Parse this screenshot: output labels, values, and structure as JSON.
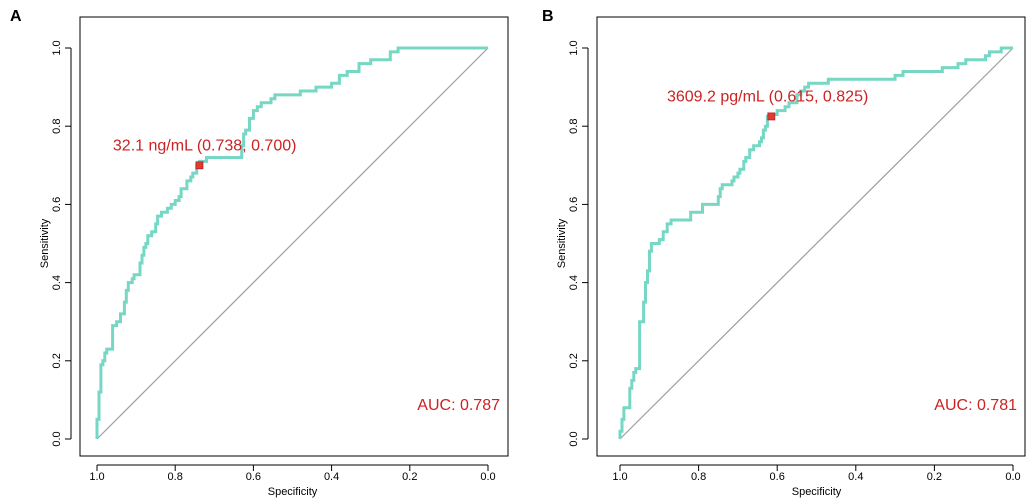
{
  "chart_data": [
    {
      "type": "line",
      "panel_label": "A",
      "xlabel": "Specificity",
      "ylabel": "Sensitivity",
      "xlim": [
        1.0,
        0.0
      ],
      "ylim": [
        0.0,
        1.0
      ],
      "xticks": [
        1.0,
        0.8,
        0.6,
        0.4,
        0.2,
        0.0
      ],
      "xtick_labels": [
        "1.0",
        "0.8",
        "0.6",
        "0.4",
        "0.2",
        "0.0"
      ],
      "yticks": [
        0.0,
        0.2,
        0.4,
        0.6,
        0.8,
        1.0
      ],
      "ytick_labels": [
        "0.0",
        "0.2",
        "0.4",
        "0.6",
        "0.8",
        "1.0"
      ],
      "series": [
        {
          "name": "ROC",
          "color": "#76D7C4",
          "points": [
            [
              1.0,
              0.0
            ],
            [
              1.0,
              0.03
            ],
            [
              0.995,
              0.05
            ],
            [
              0.995,
              0.1
            ],
            [
              0.99,
              0.12
            ],
            [
              0.99,
              0.17
            ],
            [
              0.985,
              0.19
            ],
            [
              0.98,
              0.2
            ],
            [
              0.975,
              0.22
            ],
            [
              0.96,
              0.23
            ],
            [
              0.96,
              0.28
            ],
            [
              0.95,
              0.29
            ],
            [
              0.94,
              0.3
            ],
            [
              0.93,
              0.32
            ],
            [
              0.925,
              0.35
            ],
            [
              0.92,
              0.38
            ],
            [
              0.91,
              0.4
            ],
            [
              0.905,
              0.41
            ],
            [
              0.89,
              0.42
            ],
            [
              0.885,
              0.45
            ],
            [
              0.88,
              0.47
            ],
            [
              0.875,
              0.49
            ],
            [
              0.87,
              0.5
            ],
            [
              0.86,
              0.52
            ],
            [
              0.85,
              0.53
            ],
            [
              0.845,
              0.55
            ],
            [
              0.835,
              0.57
            ],
            [
              0.82,
              0.58
            ],
            [
              0.81,
              0.59
            ],
            [
              0.8,
              0.6
            ],
            [
              0.79,
              0.61
            ],
            [
              0.785,
              0.62
            ],
            [
              0.77,
              0.64
            ],
            [
              0.76,
              0.66
            ],
            [
              0.755,
              0.67
            ],
            [
              0.745,
              0.68
            ],
            [
              0.738,
              0.7
            ],
            [
              0.72,
              0.71
            ],
            [
              0.7,
              0.72
            ],
            [
              0.63,
              0.72
            ],
            [
              0.625,
              0.75
            ],
            [
              0.62,
              0.78
            ],
            [
              0.61,
              0.79
            ],
            [
              0.6,
              0.82
            ],
            [
              0.59,
              0.84
            ],
            [
              0.58,
              0.85
            ],
            [
              0.555,
              0.86
            ],
            [
              0.545,
              0.87
            ],
            [
              0.52,
              0.88
            ],
            [
              0.48,
              0.88
            ],
            [
              0.47,
              0.89
            ],
            [
              0.44,
              0.89
            ],
            [
              0.4,
              0.9
            ],
            [
              0.38,
              0.91
            ],
            [
              0.36,
              0.93
            ],
            [
              0.35,
              0.94
            ],
            [
              0.33,
              0.94
            ],
            [
              0.3,
              0.96
            ],
            [
              0.25,
              0.97
            ],
            [
              0.23,
              0.99
            ],
            [
              0.22,
              1.0
            ],
            [
              0.0,
              1.0
            ]
          ]
        }
      ],
      "cutoff": {
        "x": 0.738,
        "y": 0.7,
        "label": "32.1 ng/mL (0.738, 0.700)",
        "color": "#E03C31"
      },
      "auc_label": "AUC: 0.787",
      "annotation_color": "#CC2222",
      "reference_line": [
        [
          1.0,
          0.0
        ],
        [
          0.0,
          1.0
        ]
      ]
    },
    {
      "type": "line",
      "panel_label": "B",
      "xlabel": "Specificity",
      "ylabel": "Sensitivity",
      "xlim": [
        1.0,
        0.0
      ],
      "ylim": [
        0.0,
        1.0
      ],
      "xticks": [
        1.0,
        0.8,
        0.6,
        0.4,
        0.2,
        0.0
      ],
      "xtick_labels": [
        "1.0",
        "0.8",
        "0.6",
        "0.4",
        "0.2",
        "0.0"
      ],
      "yticks": [
        0.0,
        0.2,
        0.4,
        0.6,
        0.8,
        1.0
      ],
      "ytick_labels": [
        "0.0",
        "0.2",
        "0.4",
        "0.6",
        "0.8",
        "1.0"
      ],
      "series": [
        {
          "name": "ROC",
          "color": "#76D7C4",
          "points": [
            [
              1.0,
              0.0
            ],
            [
              0.995,
              0.02
            ],
            [
              0.99,
              0.05
            ],
            [
              0.985,
              0.08
            ],
            [
              0.975,
              0.08
            ],
            [
              0.97,
              0.13
            ],
            [
              0.965,
              0.15
            ],
            [
              0.96,
              0.17
            ],
            [
              0.95,
              0.18
            ],
            [
              0.95,
              0.22
            ],
            [
              0.94,
              0.3
            ],
            [
              0.935,
              0.35
            ],
            [
              0.93,
              0.4
            ],
            [
              0.925,
              0.43
            ],
            [
              0.92,
              0.48
            ],
            [
              0.915,
              0.5
            ],
            [
              0.9,
              0.5
            ],
            [
              0.89,
              0.51
            ],
            [
              0.88,
              0.53
            ],
            [
              0.87,
              0.55
            ],
            [
              0.86,
              0.56
            ],
            [
              0.82,
              0.56
            ],
            [
              0.81,
              0.58
            ],
            [
              0.79,
              0.58
            ],
            [
              0.78,
              0.6
            ],
            [
              0.75,
              0.6
            ],
            [
              0.745,
              0.62
            ],
            [
              0.74,
              0.64
            ],
            [
              0.73,
              0.65
            ],
            [
              0.715,
              0.65
            ],
            [
              0.71,
              0.66
            ],
            [
              0.7,
              0.67
            ],
            [
              0.695,
              0.68
            ],
            [
              0.685,
              0.69
            ],
            [
              0.68,
              0.71
            ],
            [
              0.67,
              0.72
            ],
            [
              0.66,
              0.74
            ],
            [
              0.655,
              0.75
            ],
            [
              0.645,
              0.75
            ],
            [
              0.64,
              0.76
            ],
            [
              0.635,
              0.77
            ],
            [
              0.63,
              0.79
            ],
            [
              0.625,
              0.8
            ],
            [
              0.615,
              0.825
            ],
            [
              0.6,
              0.83
            ],
            [
              0.58,
              0.84
            ],
            [
              0.57,
              0.85
            ],
            [
              0.55,
              0.86
            ],
            [
              0.54,
              0.88
            ],
            [
              0.53,
              0.89
            ],
            [
              0.52,
              0.9
            ],
            [
              0.51,
              0.91
            ],
            [
              0.47,
              0.91
            ],
            [
              0.46,
              0.92
            ],
            [
              0.3,
              0.92
            ],
            [
              0.28,
              0.93
            ],
            [
              0.22,
              0.94
            ],
            [
              0.18,
              0.94
            ],
            [
              0.17,
              0.95
            ],
            [
              0.14,
              0.95
            ],
            [
              0.12,
              0.96
            ],
            [
              0.07,
              0.97
            ],
            [
              0.06,
              0.98
            ],
            [
              0.03,
              0.99
            ],
            [
              0.02,
              1.0
            ],
            [
              0.0,
              1.0
            ]
          ]
        }
      ],
      "cutoff": {
        "x": 0.615,
        "y": 0.825,
        "label": "3609.2 pg/mL (0.615, 0.825)",
        "color": "#E03C31"
      },
      "auc_label": "AUC: 0.781",
      "annotation_color": "#CC2222",
      "reference_line": [
        [
          1.0,
          0.0
        ],
        [
          0.0,
          1.0
        ]
      ]
    }
  ]
}
